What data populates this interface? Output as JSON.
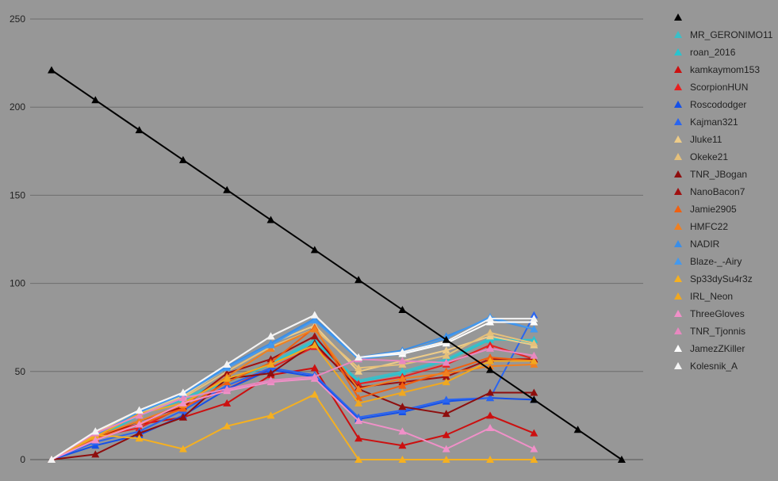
{
  "chart_data": {
    "type": "line",
    "ylim": [
      0,
      250
    ],
    "yticks": [
      0,
      50,
      100,
      150,
      200,
      250
    ],
    "grid": true,
    "legend": "right",
    "x": [
      1,
      2,
      3,
      4,
      5,
      6,
      7,
      8,
      9,
      10,
      11,
      12,
      13,
      14
    ],
    "series": [
      {
        "name": "",
        "color": "#000000",
        "values": [
          221,
          204,
          187,
          170,
          153,
          136,
          119,
          102,
          85,
          68,
          51,
          34,
          17,
          0
        ]
      },
      {
        "name": "MR_GERONIMO11",
        "color": "#3BBFC8",
        "values": [
          0,
          13,
          26,
          35,
          45,
          55,
          68,
          45,
          50,
          57,
          69,
          66,
          null,
          null
        ]
      },
      {
        "name": "roan_2016",
        "color": "#29C4CF",
        "values": [
          0,
          12,
          25,
          34,
          44,
          54,
          67,
          44,
          49,
          56,
          68,
          68,
          null,
          null
        ]
      },
      {
        "name": "kamkaymom153",
        "color": "#CC1010",
        "values": [
          0,
          14,
          20,
          24,
          32,
          48,
          52,
          12,
          8,
          14,
          25,
          15,
          null,
          null
        ]
      },
      {
        "name": "ScorpionHUN",
        "color": "#E82020",
        "values": [
          0,
          13,
          18,
          30,
          40,
          52,
          64,
          43,
          47,
          54,
          65,
          57,
          null,
          null
        ]
      },
      {
        "name": "Roscododger",
        "color": "#1550E8",
        "values": [
          0,
          8,
          14,
          25,
          40,
          51,
          47,
          23,
          27,
          33,
          35,
          34,
          null,
          null
        ]
      },
      {
        "name": "Kajman321",
        "color": "#2A65F0",
        "values": [
          0,
          10,
          16,
          28,
          42,
          52,
          48,
          24,
          28,
          34,
          35,
          82,
          null,
          null
        ]
      },
      {
        "name": "Jluke11",
        "color": "#EECC88",
        "values": [
          0,
          15,
          27,
          36,
          52,
          66,
          76,
          50,
          56,
          62,
          70,
          65,
          null,
          null
        ]
      },
      {
        "name": "Okeke21",
        "color": "#E5C07A",
        "values": [
          0,
          14,
          26,
          35,
          50,
          64,
          74,
          52,
          54,
          59,
          72,
          66,
          null,
          null
        ]
      },
      {
        "name": "TNR_JBogan",
        "color": "#8E0E0E",
        "values": [
          0,
          3,
          15,
          24,
          46,
          49,
          66,
          40,
          30,
          26,
          38,
          38,
          null,
          null
        ]
      },
      {
        "name": "NanoBacon7",
        "color": "#A01010",
        "values": [
          0,
          12,
          22,
          30,
          49,
          57,
          70,
          41,
          44,
          47,
          57,
          57,
          null,
          null
        ]
      },
      {
        "name": "Jamie2905",
        "color": "#F06010",
        "values": [
          0,
          12,
          20,
          29,
          44,
          55,
          75,
          35,
          42,
          50,
          58,
          56,
          null,
          null
        ]
      },
      {
        "name": "HMFC22",
        "color": "#F08020",
        "values": [
          0,
          13,
          22,
          31,
          47,
          63,
          74,
          40,
          46,
          49,
          53,
          54,
          null,
          null
        ]
      },
      {
        "name": "NADIR",
        "color": "#3A8EE8",
        "values": [
          0,
          13,
          27,
          37,
          53,
          66,
          80,
          58,
          62,
          70,
          80,
          74,
          null,
          null
        ]
      },
      {
        "name": "Blaze-_-Airy",
        "color": "#4499EE",
        "values": [
          0,
          14,
          27,
          37,
          52,
          65,
          79,
          57,
          60,
          69,
          81,
          74,
          null,
          null
        ]
      },
      {
        "name": "Sp33dySu4r3z",
        "color": "#F5B020",
        "values": [
          0,
          14,
          12,
          6,
          19,
          25,
          37,
          0,
          0,
          0,
          0,
          0,
          null,
          null
        ]
      },
      {
        "name": "IRL_Neon",
        "color": "#F0A820",
        "values": [
          0,
          13,
          26,
          32,
          46,
          54,
          65,
          32,
          38,
          44,
          56,
          56,
          null,
          null
        ]
      },
      {
        "name": "ThreeGloves",
        "color": "#F090C8",
        "values": [
          0,
          11,
          20,
          32,
          39,
          44,
          46,
          22,
          16,
          6,
          18,
          6,
          null,
          null
        ]
      },
      {
        "name": "TNR_Tjonnis",
        "color": "#E888C0",
        "values": [
          0,
          15,
          25,
          35,
          40,
          45,
          47,
          57,
          56,
          55,
          63,
          59,
          null,
          null
        ]
      },
      {
        "name": "JamezZKiller",
        "color": "#FFFFFF",
        "values": [
          0,
          16,
          28,
          38,
          54,
          70,
          82,
          58,
          60,
          66,
          78,
          78,
          null,
          null
        ]
      },
      {
        "name": "Kolesnik_A",
        "color": "#F4F4F4",
        "values": [
          0,
          16,
          28,
          38,
          54,
          70,
          82,
          58,
          61,
          67,
          80,
          80,
          null,
          null
        ]
      }
    ]
  }
}
